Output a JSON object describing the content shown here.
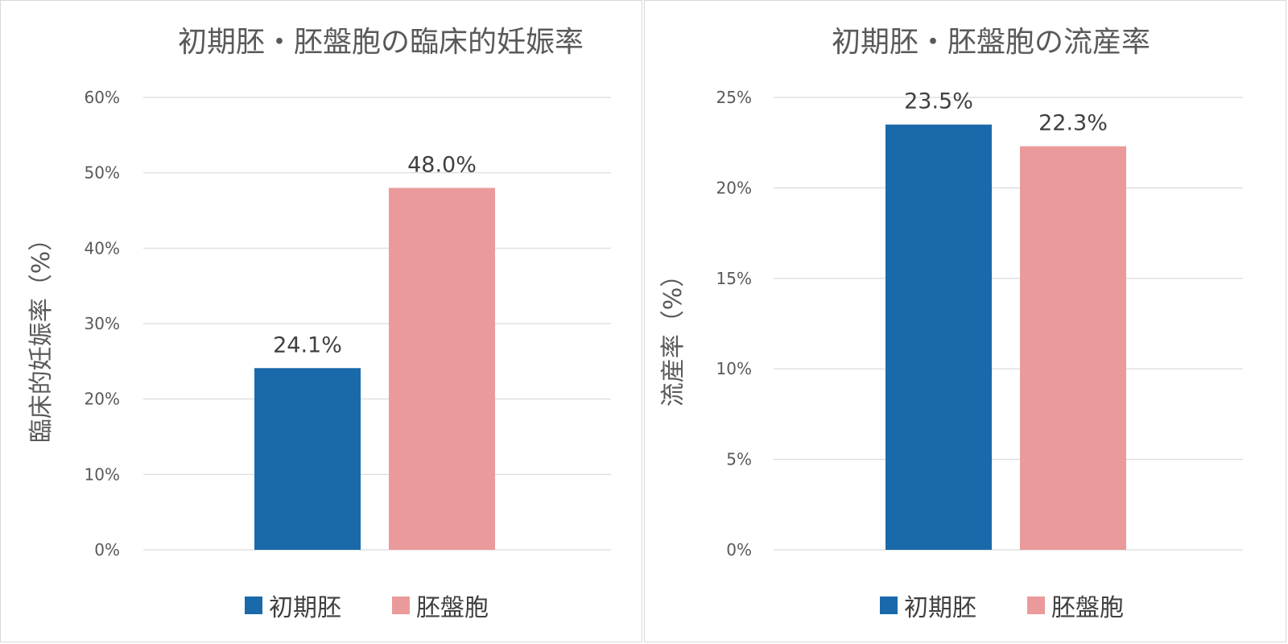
{
  "colors": {
    "early_embryo": "#1a6aab",
    "blastocyst": "#eb9a9b"
  },
  "chart_data": [
    {
      "type": "bar",
      "title": "初期胚・胚盤胞の臨床的妊娠率",
      "ylabel": "臨床的妊娠率（%）",
      "xlabel": "",
      "ylim": [
        0,
        60
      ],
      "yticks": [
        0,
        10,
        20,
        30,
        40,
        50,
        60
      ],
      "ytick_labels": [
        "0%",
        "10%",
        "20%",
        "30%",
        "40%",
        "50%",
        "60%"
      ],
      "categories": [
        "初期胚",
        "胚盤胞"
      ],
      "values": [
        24.1,
        48.0
      ],
      "data_labels": [
        "24.1%",
        "48.0%"
      ],
      "legend": [
        "初期胚",
        "胚盤胞"
      ],
      "legend_position": "bottom",
      "grid": true
    },
    {
      "type": "bar",
      "title": "初期胚・胚盤胞の流産率",
      "ylabel": "流産率（%）",
      "xlabel": "",
      "ylim": [
        0,
        25
      ],
      "yticks": [
        0,
        5,
        10,
        15,
        20,
        25
      ],
      "ytick_labels": [
        "0%",
        "5%",
        "10%",
        "15%",
        "20%",
        "25%"
      ],
      "categories": [
        "初期胚",
        "胚盤胞"
      ],
      "values": [
        23.5,
        22.3
      ],
      "data_labels": [
        "23.5%",
        "22.3%"
      ],
      "legend": [
        "初期胚",
        "胚盤胞"
      ],
      "legend_position": "bottom",
      "grid": true
    }
  ]
}
